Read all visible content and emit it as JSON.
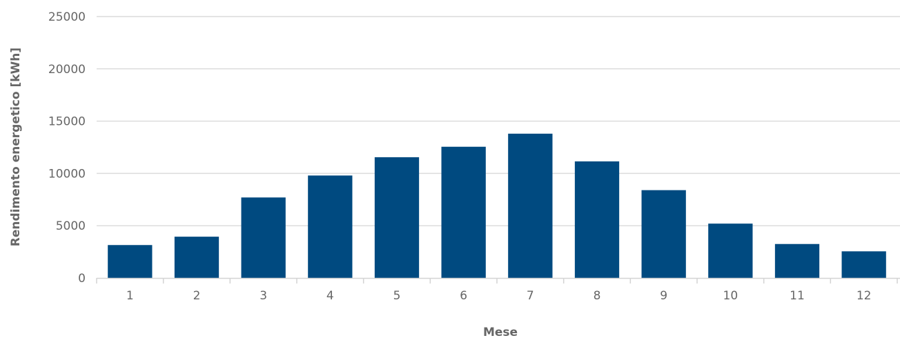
{
  "chart_data": {
    "type": "bar",
    "categories": [
      "1",
      "2",
      "3",
      "4",
      "5",
      "6",
      "7",
      "8",
      "9",
      "10",
      "11",
      "12"
    ],
    "values": [
      3150,
      3950,
      7700,
      9800,
      11550,
      12550,
      13800,
      11150,
      8400,
      5200,
      3250,
      2550
    ],
    "xlabel": "Mese",
    "ylabel": "Rendimento energetico [kWh]",
    "ylim": [
      0,
      25000
    ],
    "yticks": [
      0,
      5000,
      10000,
      15000,
      20000,
      25000
    ],
    "grid": true,
    "bar_color": "#004a80",
    "grid_color": "#dcdcdc",
    "text_color": "#666666"
  }
}
